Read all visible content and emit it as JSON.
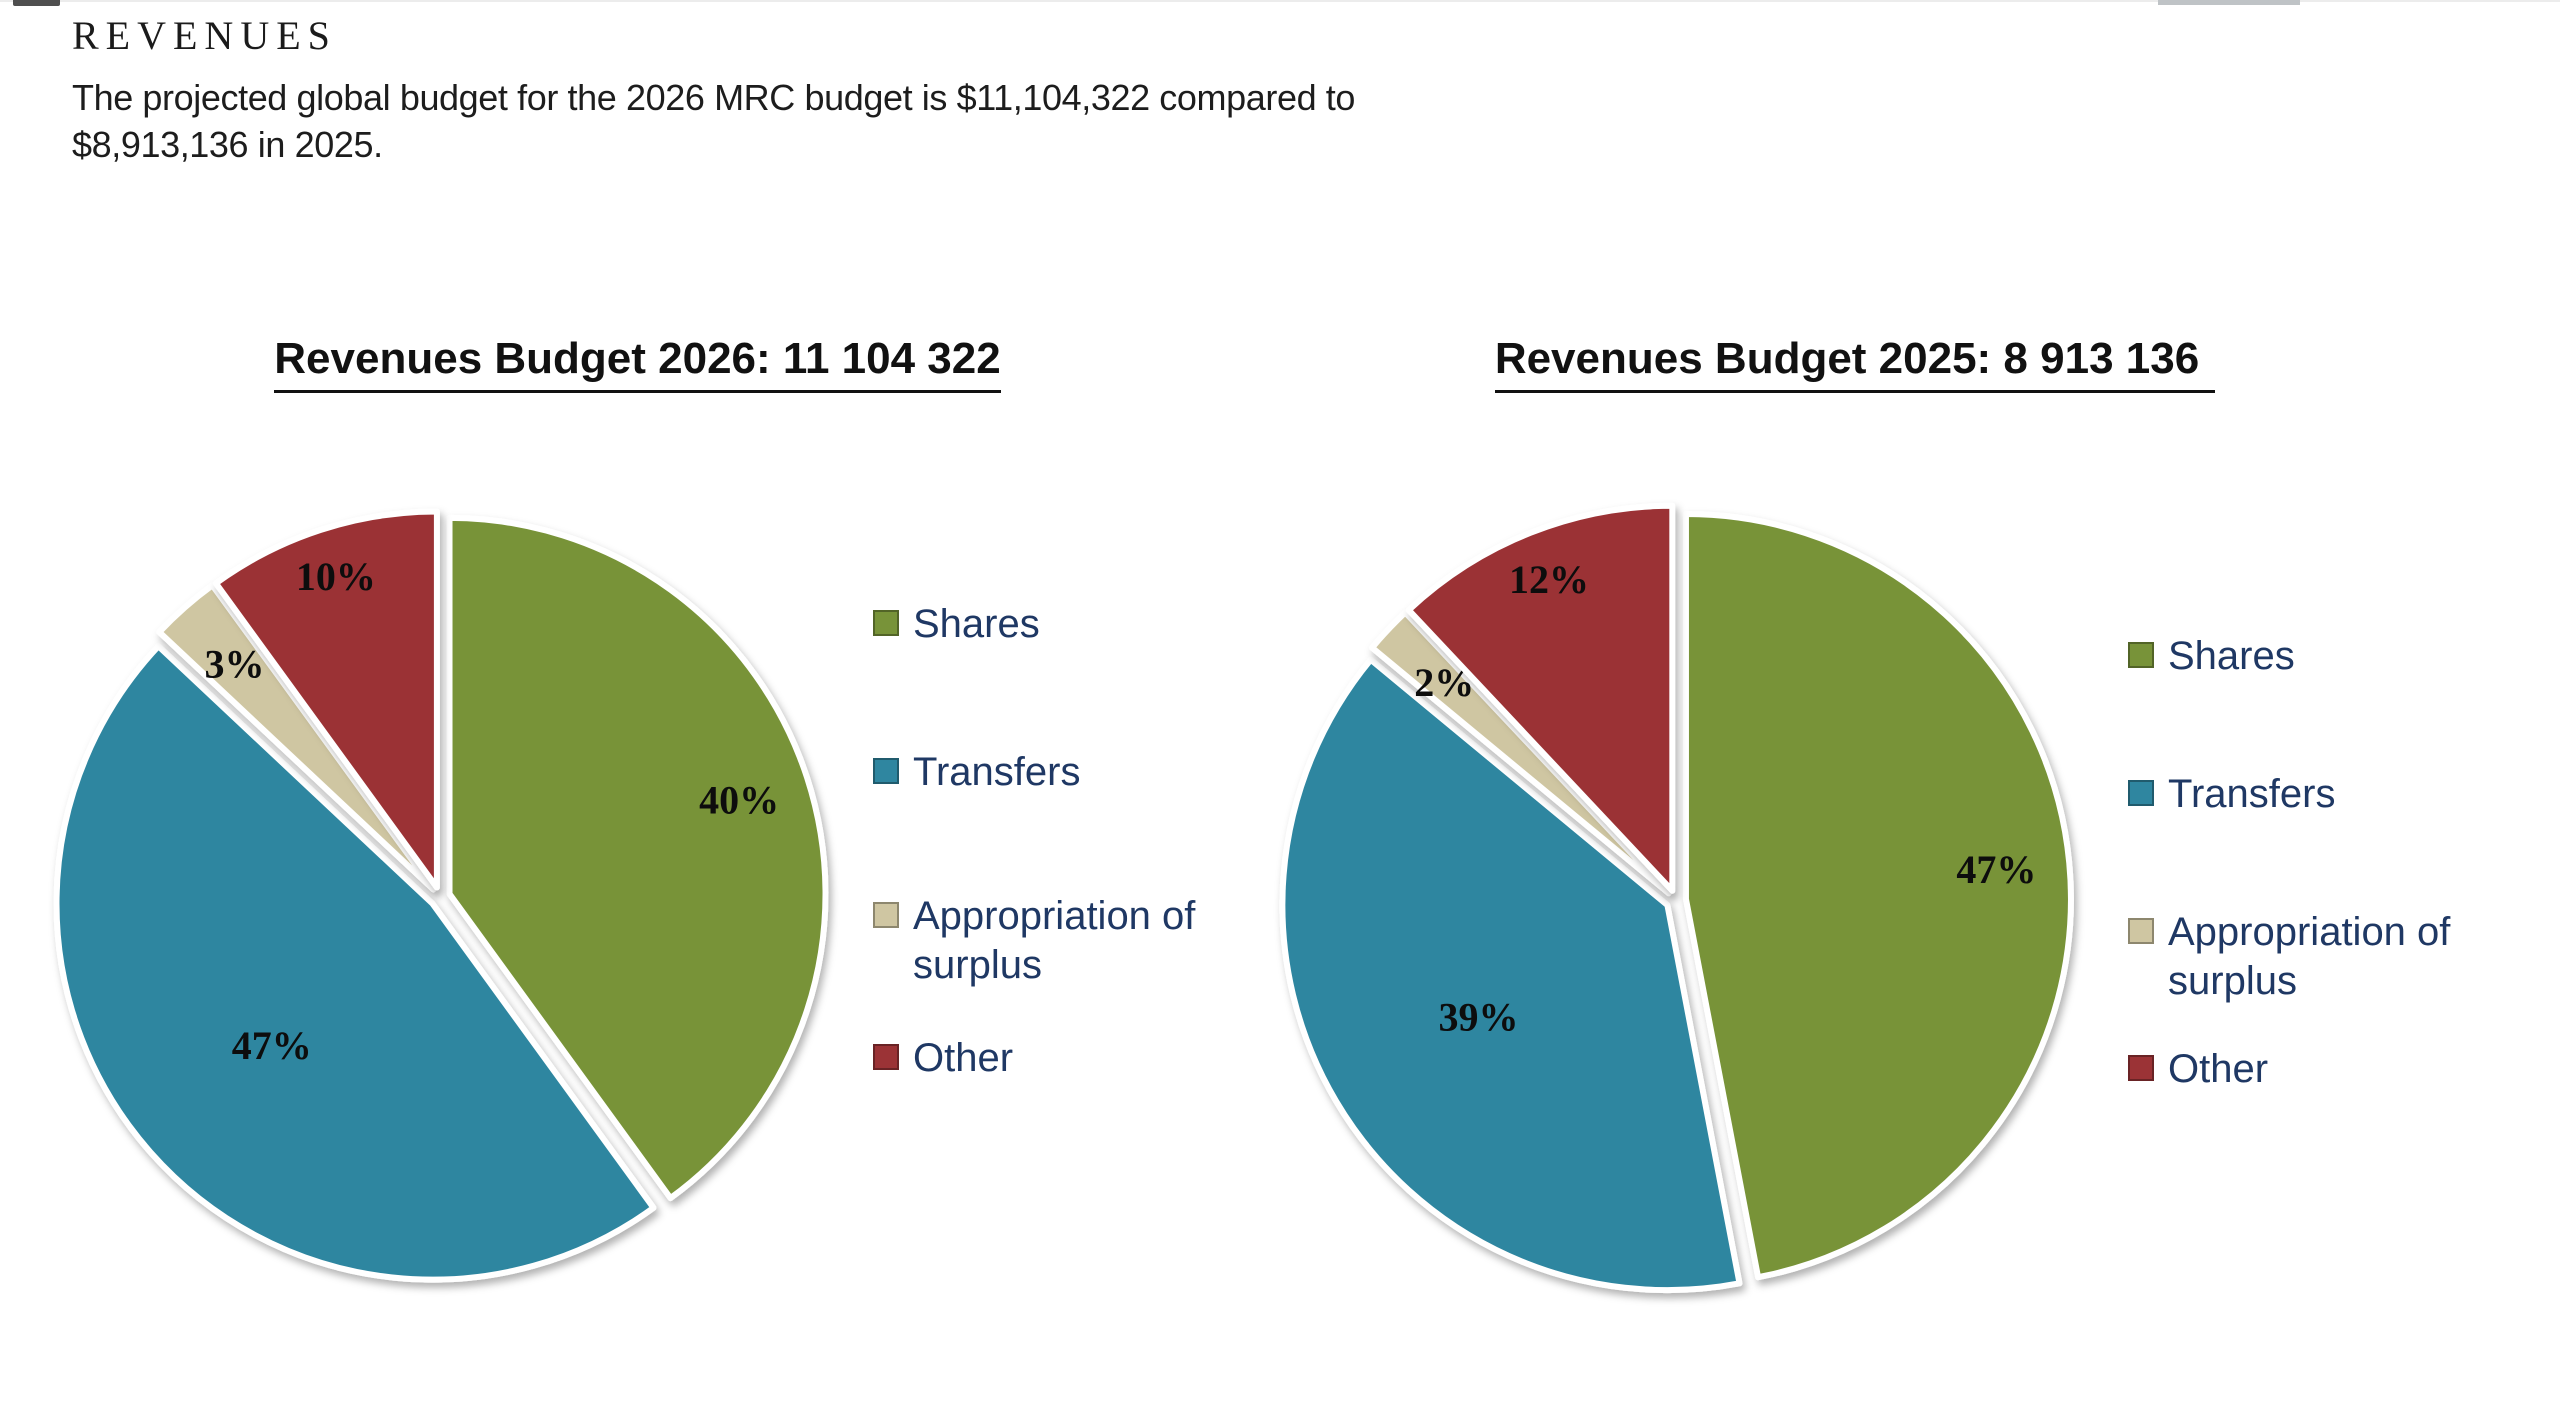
{
  "page": {
    "heading": "REVENUES",
    "paragraph_lines": [
      "The projected global budget for the 2026 MRC budget is $11,104,322 compared to",
      "$8,913,136 in 2025."
    ]
  },
  "chart_data": [
    {
      "type": "pie",
      "title": "Revenues Budget 2026: 11 104 322",
      "legend_position": "right",
      "start_angle": "12 o'clock",
      "direction": "clockwise",
      "exploded": true,
      "slices": [
        {
          "label": "Shares",
          "value": 40,
          "display": "40%",
          "color": "#789339"
        },
        {
          "label": "Transfers",
          "value": 47,
          "display": "47%",
          "color": "#2F86A0"
        },
        {
          "label": "Appropriation of surplus",
          "value": 3,
          "display": "3%",
          "color": "#CFC6A2"
        },
        {
          "label": "Other",
          "value": 10,
          "display": "10%",
          "color": "#9B3336"
        }
      ]
    },
    {
      "type": "pie",
      "title": "Revenues Budget 2025: 8 913 136",
      "legend_position": "right",
      "start_angle": "12 o'clock",
      "direction": "clockwise",
      "exploded": true,
      "slices": [
        {
          "label": "Shares",
          "value": 47,
          "display": "47%",
          "color": "#789339"
        },
        {
          "label": "Transfers",
          "value": 39,
          "display": "39%",
          "color": "#2F86A0"
        },
        {
          "label": "Appropriation of surplus",
          "value": 2,
          "display": "2%",
          "color": "#CFC6A2"
        },
        {
          "label": "Other",
          "value": 12,
          "display": "12%",
          "color": "#9B3336"
        }
      ]
    }
  ],
  "colors": {
    "legend_text": "#1F3864",
    "body_text": "#1d1d1d",
    "title_text": "#111111",
    "slice_gap": "#ffffff"
  }
}
